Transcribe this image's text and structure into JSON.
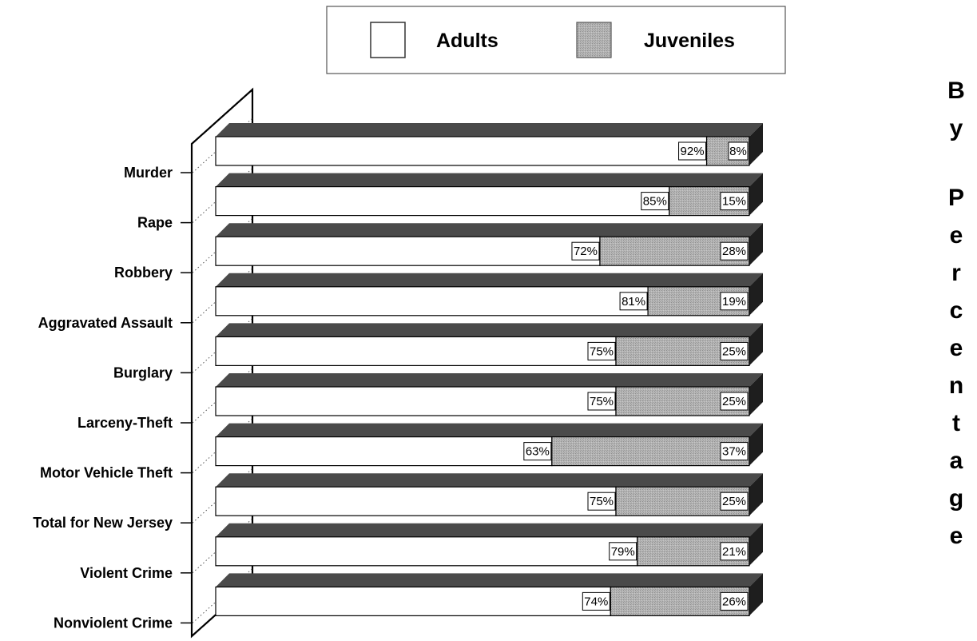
{
  "side_title": "By Percentage",
  "chart_data": {
    "type": "bar",
    "orientation": "horizontal",
    "stacked": true,
    "normalized": "percent",
    "categories": [
      "Murder",
      "Rape",
      "Robbery",
      "Aggravated Assault",
      "Burglary",
      "Larceny-Theft",
      "Motor Vehicle Theft",
      "Total for New Jersey",
      "Violent Crime",
      "Nonviolent Crime"
    ],
    "series": [
      {
        "name": "Adults",
        "values": [
          92,
          85,
          72,
          81,
          75,
          75,
          63,
          75,
          79,
          74
        ],
        "labels": [
          "92%",
          "85%",
          "72%",
          "81%",
          "75%",
          "75%",
          "63%",
          "75%",
          "79%",
          "74%"
        ]
      },
      {
        "name": "Juveniles",
        "values": [
          8,
          15,
          28,
          19,
          25,
          25,
          37,
          25,
          21,
          26
        ],
        "labels": [
          "8%",
          "15%",
          "28%",
          "19%",
          "25%",
          "25%",
          "37%",
          "25%",
          "21%",
          "26%"
        ]
      }
    ],
    "xlim": [
      0,
      100
    ],
    "legend_position": "top",
    "colors": {
      "Adults": "#ffffff",
      "Juveniles": "#a8a8a8",
      "bar_top": "#4a4a4a",
      "bar_side": "#1e1e1e"
    }
  }
}
